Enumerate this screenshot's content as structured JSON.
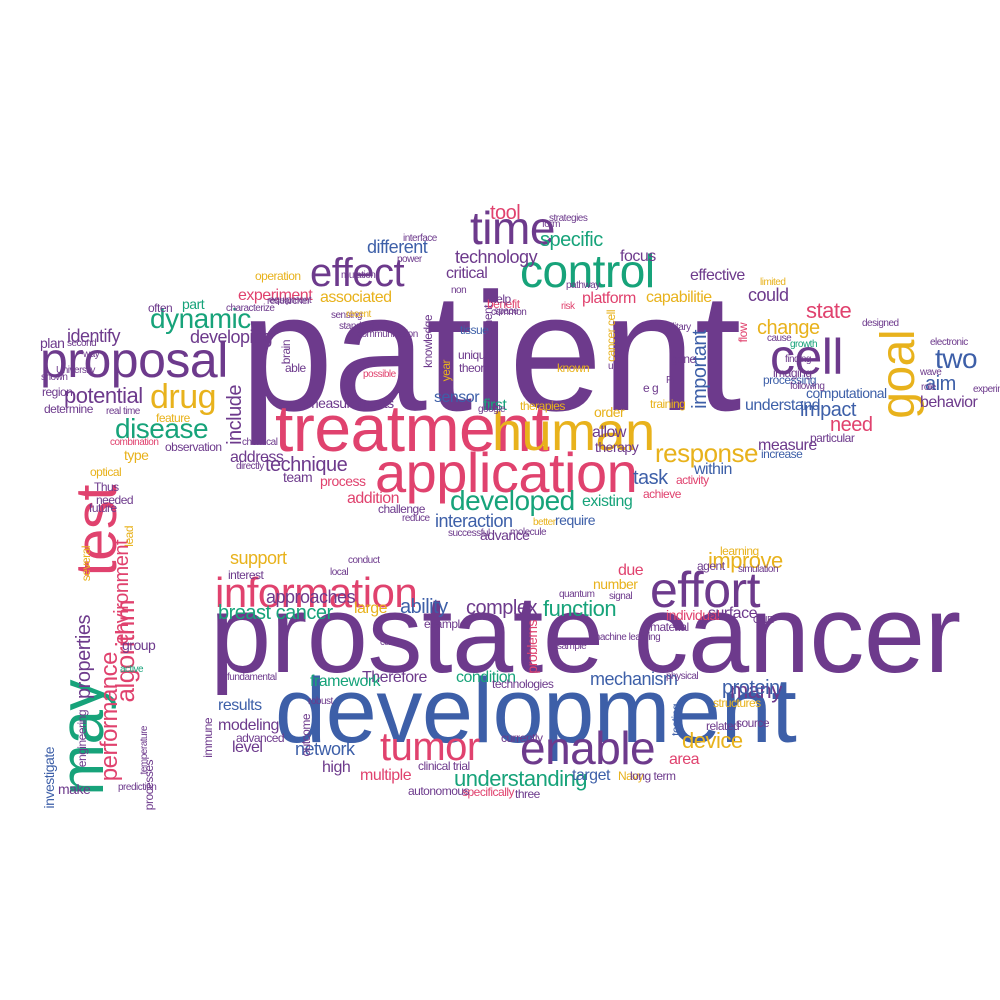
{
  "colors": {
    "purple": "#6d3a8c",
    "pink": "#e0426e",
    "green": "#17a37a",
    "yellow": "#e8b21c",
    "blue": "#3d5fa8"
  },
  "words": [
    {
      "text": "patient",
      "color": "purple",
      "size": 1
    },
    {
      "text": "prostate cancer",
      "color": "purple",
      "size": 1
    },
    {
      "text": "development",
      "color": "blue",
      "size": 1
    },
    {
      "text": "treatment",
      "color": "pink",
      "size": 2
    },
    {
      "text": "application",
      "color": "pink",
      "size": 2
    },
    {
      "text": "proposal",
      "color": "purple",
      "size": 2
    },
    {
      "text": "human",
      "color": "yellow",
      "size": 2
    },
    {
      "text": "cell",
      "color": "purple",
      "size": 2
    },
    {
      "text": "control",
      "color": "green",
      "size": 2
    },
    {
      "text": "time",
      "color": "purple",
      "size": 2
    },
    {
      "text": "effect",
      "color": "purple",
      "size": 2
    },
    {
      "text": "information",
      "color": "pink",
      "size": 2
    },
    {
      "text": "effort",
      "color": "purple",
      "size": 2
    },
    {
      "text": "enable",
      "color": "purple",
      "size": 2
    },
    {
      "text": "tumor",
      "color": "pink",
      "size": 2
    },
    {
      "text": "test",
      "color": "pink",
      "size": 2
    },
    {
      "text": "may",
      "color": "green",
      "size": 2
    },
    {
      "text": "goal",
      "color": "yellow",
      "size": 2
    },
    {
      "text": "drug",
      "color": "yellow",
      "size": 3
    },
    {
      "text": "dynamic",
      "color": "green",
      "size": 3
    },
    {
      "text": "disease",
      "color": "green",
      "size": 3
    },
    {
      "text": "developed",
      "color": "green",
      "size": 3
    },
    {
      "text": "two",
      "color": "blue",
      "size": 3
    },
    {
      "text": "algorithm",
      "color": "pink",
      "size": 3
    },
    {
      "text": "response",
      "color": "yellow",
      "size": 3
    },
    {
      "text": "specific",
      "color": "green",
      "size": 3
    },
    {
      "text": "tool",
      "color": "pink",
      "size": 3
    },
    {
      "text": "technique",
      "color": "purple",
      "size": 3
    },
    {
      "text": "interaction",
      "color": "blue",
      "size": 3
    },
    {
      "text": "understanding",
      "color": "green",
      "size": 3
    },
    {
      "text": "network",
      "color": "blue",
      "size": 3
    },
    {
      "text": "many",
      "color": "purple",
      "size": 3
    },
    {
      "text": "device",
      "color": "yellow",
      "size": 3
    },
    {
      "text": "function",
      "color": "green",
      "size": 3
    },
    {
      "text": "ability",
      "color": "blue",
      "size": 3
    },
    {
      "text": "complex",
      "color": "purple",
      "size": 3
    },
    {
      "text": "support",
      "color": "yellow",
      "size": 3
    },
    {
      "text": "improve",
      "color": "yellow",
      "size": 3
    },
    {
      "text": "breast cancer",
      "color": "green",
      "size": 3
    },
    {
      "text": "protein",
      "color": "blue",
      "size": 3
    },
    {
      "text": "performance",
      "color": "pink",
      "size": 3
    },
    {
      "text": "properties",
      "color": "purple",
      "size": 3
    },
    {
      "text": "environment",
      "color": "pink",
      "size": 3
    },
    {
      "text": "potential",
      "color": "purple",
      "size": 3
    },
    {
      "text": "include",
      "color": "purple",
      "size": 3
    },
    {
      "text": "impact",
      "color": "blue",
      "size": 3
    },
    {
      "text": "state",
      "color": "pink",
      "size": 3
    },
    {
      "text": "change",
      "color": "yellow",
      "size": 3
    },
    {
      "text": "task",
      "color": "blue",
      "size": 3
    },
    {
      "text": "need",
      "color": "pink",
      "size": 3
    },
    {
      "text": "aim",
      "color": "blue",
      "size": 3
    },
    {
      "text": "important",
      "color": "blue",
      "size": 3
    },
    {
      "text": "approaches",
      "color": "purple",
      "size": 3
    },
    {
      "text": "mechanism",
      "color": "blue",
      "size": 3
    },
    {
      "text": "results",
      "color": "blue",
      "size": 3
    },
    {
      "text": "experiment",
      "color": "pink",
      "size": 4
    },
    {
      "text": "associated",
      "color": "yellow",
      "size": 4
    },
    {
      "text": "identify",
      "color": "purple",
      "size": 4
    },
    {
      "text": "developing",
      "color": "purple",
      "size": 4
    },
    {
      "text": "technology",
      "color": "purple",
      "size": 4
    },
    {
      "text": "different",
      "color": "blue",
      "size": 4
    },
    {
      "text": "critical",
      "color": "purple",
      "size": 4
    },
    {
      "text": "platform",
      "color": "pink",
      "size": 4
    },
    {
      "text": "capabilitie",
      "color": "yellow",
      "size": 4
    },
    {
      "text": "effective",
      "color": "purple",
      "size": 4
    },
    {
      "text": "focus",
      "color": "purple",
      "size": 4
    },
    {
      "text": "could",
      "color": "purple",
      "size": 4
    },
    {
      "text": "computational",
      "color": "blue",
      "size": 4
    },
    {
      "text": "behavior",
      "color": "purple",
      "size": 4
    },
    {
      "text": "understand",
      "color": "blue",
      "size": 4
    },
    {
      "text": "measure",
      "color": "purple",
      "size": 4
    },
    {
      "text": "address",
      "color": "purple",
      "size": 4
    },
    {
      "text": "process",
      "color": "pink",
      "size": 4
    },
    {
      "text": "team",
      "color": "purple",
      "size": 4
    },
    {
      "text": "addition",
      "color": "pink",
      "size": 4
    },
    {
      "text": "sensor",
      "color": "blue",
      "size": 4
    },
    {
      "text": "first",
      "color": "green",
      "size": 4
    },
    {
      "text": "therapy",
      "color": "purple",
      "size": 4
    },
    {
      "text": "allow",
      "color": "purple",
      "size": 4
    },
    {
      "text": "order",
      "color": "yellow",
      "size": 4
    },
    {
      "text": "existing",
      "color": "green",
      "size": 4
    },
    {
      "text": "within",
      "color": "blue",
      "size": 4
    },
    {
      "text": "measurements",
      "color": "purple",
      "size": 4
    },
    {
      "text": "advance",
      "color": "purple",
      "size": 4
    },
    {
      "text": "require",
      "color": "blue",
      "size": 4
    },
    {
      "text": "large",
      "color": "yellow",
      "size": 4
    },
    {
      "text": "level",
      "color": "purple",
      "size": 4
    },
    {
      "text": "modeling",
      "color": "purple",
      "size": 4
    },
    {
      "text": "high",
      "color": "purple",
      "size": 4
    },
    {
      "text": "multiple",
      "color": "pink",
      "size": 4
    },
    {
      "text": "condition",
      "color": "green",
      "size": 4
    },
    {
      "text": "Therefore",
      "color": "purple",
      "size": 4
    },
    {
      "text": "framework",
      "color": "green",
      "size": 4
    },
    {
      "text": "area",
      "color": "pink",
      "size": 4
    },
    {
      "text": "due",
      "color": "pink",
      "size": 4
    },
    {
      "text": "number",
      "color": "yellow",
      "size": 4
    },
    {
      "text": "individual",
      "color": "pink",
      "size": 4
    },
    {
      "text": "surface",
      "color": "purple",
      "size": 4
    },
    {
      "text": "target",
      "color": "blue",
      "size": 4
    },
    {
      "text": "group",
      "color": "purple",
      "size": 4
    },
    {
      "text": "investigate",
      "color": "blue",
      "size": 4
    },
    {
      "text": "make",
      "color": "purple",
      "size": 4
    },
    {
      "text": "problems",
      "color": "pink",
      "size": 4
    },
    {
      "text": "type",
      "color": "yellow",
      "size": 4
    },
    {
      "text": "plan",
      "color": "purple",
      "size": 4
    },
    {
      "text": "part",
      "color": "green",
      "size": 4
    },
    {
      "text": "often",
      "color": "purple",
      "size": 5
    },
    {
      "text": "determine",
      "color": "purple",
      "size": 5
    },
    {
      "text": "region",
      "color": "purple",
      "size": 5
    },
    {
      "text": "feature",
      "color": "yellow",
      "size": 5
    },
    {
      "text": "observation",
      "color": "purple",
      "size": 5
    },
    {
      "text": "operation",
      "color": "yellow",
      "size": 5
    },
    {
      "text": "tissue",
      "color": "blue",
      "size": 5
    },
    {
      "text": "unique",
      "color": "purple",
      "size": 5
    },
    {
      "text": "theory",
      "color": "purple",
      "size": 5
    },
    {
      "text": "component",
      "color": "purple",
      "size": 5
    },
    {
      "text": "knowledge",
      "color": "purple",
      "size": 5
    },
    {
      "text": "benefit",
      "color": "pink",
      "size": 5
    },
    {
      "text": "help",
      "color": "purple",
      "size": 5
    },
    {
      "text": "known",
      "color": "yellow",
      "size": 5
    },
    {
      "text": "cancer cell",
      "color": "yellow",
      "size": 5
    },
    {
      "text": "gene",
      "color": "purple",
      "size": 5
    },
    {
      "text": "processing",
      "color": "blue",
      "size": 5
    },
    {
      "text": "imaging",
      "color": "purple",
      "size": 5
    },
    {
      "text": "flow",
      "color": "pink",
      "size": 5
    },
    {
      "text": "training",
      "color": "yellow",
      "size": 5
    },
    {
      "text": "e g",
      "color": "purple",
      "size": 5
    },
    {
      "text": "year",
      "color": "yellow",
      "size": 5
    },
    {
      "text": "brain",
      "color": "purple",
      "size": 5
    },
    {
      "text": "able",
      "color": "purple",
      "size": 5
    },
    {
      "text": "therapies",
      "color": "yellow",
      "size": 5
    },
    {
      "text": "particular",
      "color": "purple",
      "size": 5
    },
    {
      "text": "increase",
      "color": "blue",
      "size": 5
    },
    {
      "text": "achieve",
      "color": "pink",
      "size": 5
    },
    {
      "text": "activity",
      "color": "pink",
      "size": 5
    },
    {
      "text": "challenge",
      "color": "purple",
      "size": 5
    },
    {
      "text": "Thus",
      "color": "purple",
      "size": 5
    },
    {
      "text": "future",
      "color": "purple",
      "size": 5
    },
    {
      "text": "needed",
      "color": "purple",
      "size": 5
    },
    {
      "text": "optical",
      "color": "yellow",
      "size": 5
    },
    {
      "text": "lead",
      "color": "yellow",
      "size": 5
    },
    {
      "text": "interest",
      "color": "purple",
      "size": 5
    },
    {
      "text": "advanced",
      "color": "purple",
      "size": 5
    },
    {
      "text": "outcome",
      "color": "purple",
      "size": 5
    },
    {
      "text": "currently",
      "color": "purple",
      "size": 5
    },
    {
      "text": "specifically",
      "color": "pink",
      "size": 5
    },
    {
      "text": "clinical trial",
      "color": "purple",
      "size": 5
    },
    {
      "text": "technologies",
      "color": "purple",
      "size": 5
    },
    {
      "text": "related",
      "color": "purple",
      "size": 5
    },
    {
      "text": "source",
      "color": "purple",
      "size": 5
    },
    {
      "text": "structures",
      "color": "yellow",
      "size": 5
    },
    {
      "text": "testing",
      "color": "blue",
      "size": 5
    },
    {
      "text": "agent",
      "color": "purple",
      "size": 5
    },
    {
      "text": "learning",
      "color": "yellow",
      "size": 5
    },
    {
      "text": "material",
      "color": "purple",
      "size": 5
    },
    {
      "text": "processes",
      "color": "purple",
      "size": 5
    },
    {
      "text": "engineering",
      "color": "purple",
      "size": 5
    },
    {
      "text": "immune",
      "color": "purple",
      "size": 5
    },
    {
      "text": "example",
      "color": "purple",
      "size": 5
    },
    {
      "text": "Navy",
      "color": "yellow",
      "size": 5
    },
    {
      "text": "long term",
      "color": "purple",
      "size": 5
    },
    {
      "text": "three",
      "color": "purple",
      "size": 5
    },
    {
      "text": "autonomous",
      "color": "purple",
      "size": 5
    },
    {
      "text": "several",
      "color": "yellow",
      "size": 5
    },
    {
      "text": "prediction",
      "color": "purple",
      "size": 6
    },
    {
      "text": "temperature",
      "color": "purple",
      "size": 6
    },
    {
      "text": "active",
      "color": "green",
      "size": 6
    },
    {
      "text": "real time",
      "color": "purple",
      "size": 6
    },
    {
      "text": "combination",
      "color": "pink",
      "size": 6
    },
    {
      "text": "chemical",
      "color": "purple",
      "size": 6
    },
    {
      "text": "directly",
      "color": "purple",
      "size": 6
    },
    {
      "text": "reduce",
      "color": "purple",
      "size": 6
    },
    {
      "text": "successful",
      "color": "purple",
      "size": 6
    },
    {
      "text": "molecule",
      "color": "purple",
      "size": 6
    },
    {
      "text": "better",
      "color": "yellow",
      "size": 6
    },
    {
      "text": "sample",
      "color": "purple",
      "size": 6
    },
    {
      "text": "case",
      "color": "purple",
      "size": 6
    },
    {
      "text": "quantum",
      "color": "purple",
      "size": 6
    },
    {
      "text": "machine learning",
      "color": "purple",
      "size": 6
    },
    {
      "text": "signal",
      "color": "purple",
      "size": 6
    },
    {
      "text": "physical",
      "color": "purple",
      "size": 6
    },
    {
      "text": "simulation",
      "color": "purple",
      "size": 6
    },
    {
      "text": "ONR",
      "color": "purple",
      "size": 6
    },
    {
      "text": "cause",
      "color": "purple",
      "size": 6
    },
    {
      "text": "following",
      "color": "purple",
      "size": 6
    },
    {
      "text": "finding",
      "color": "purple",
      "size": 6
    },
    {
      "text": "growth",
      "color": "green",
      "size": 6
    },
    {
      "text": "limited",
      "color": "yellow",
      "size": 6
    },
    {
      "text": "designed",
      "color": "purple",
      "size": 6
    },
    {
      "text": "electronic",
      "color": "purple",
      "size": 6
    },
    {
      "text": "wave",
      "color": "purple",
      "size": 6
    },
    {
      "text": "experimental",
      "color": "purple",
      "size": 6
    },
    {
      "text": "role",
      "color": "purple",
      "size": 6
    },
    {
      "text": "military",
      "color": "purple",
      "size": 6
    },
    {
      "text": "space",
      "color": "purple",
      "size": 6
    },
    {
      "text": "risk",
      "color": "pink",
      "size": 6
    },
    {
      "text": "pathway",
      "color": "purple",
      "size": 6
    },
    {
      "text": "power",
      "color": "purple",
      "size": 6
    },
    {
      "text": "mutation",
      "color": "purple",
      "size": 6
    },
    {
      "text": "non",
      "color": "purple",
      "size": 6
    },
    {
      "text": "strategies",
      "color": "purple",
      "size": 6
    },
    {
      "text": "form",
      "color": "purple",
      "size": 6
    },
    {
      "text": "interface",
      "color": "purple",
      "size": 6
    },
    {
      "text": "sensing",
      "color": "purple",
      "size": 6
    },
    {
      "text": "standard",
      "color": "purple",
      "size": 6
    },
    {
      "text": "recent",
      "color": "yellow",
      "size": 6
    },
    {
      "text": "possible",
      "color": "pink",
      "size": 6
    },
    {
      "text": "communication",
      "color": "purple",
      "size": 6
    },
    {
      "text": "researcher",
      "color": "purple",
      "size": 6
    },
    {
      "text": "equipment",
      "color": "purple",
      "size": 6
    },
    {
      "text": "characterize",
      "color": "purple",
      "size": 6
    },
    {
      "text": "second",
      "color": "purple",
      "size": 6
    },
    {
      "text": "way",
      "color": "purple",
      "size": 6
    },
    {
      "text": "shown",
      "color": "purple",
      "size": 6
    },
    {
      "text": "University",
      "color": "purple",
      "size": 6
    },
    {
      "text": "fundamental",
      "color": "purple",
      "size": 6
    },
    {
      "text": "robust",
      "color": "purple",
      "size": 6
    },
    {
      "text": "conduct",
      "color": "purple",
      "size": 6
    },
    {
      "text": "local",
      "color": "purple",
      "size": 6
    },
    {
      "text": "common",
      "color": "purple",
      "size": 6
    },
    {
      "text": "google",
      "color": "purple",
      "size": 6
    },
    {
      "text": "u",
      "color": "purple",
      "size": 6
    },
    {
      "text": "Pi",
      "color": "purple",
      "size": 6
    }
  ]
}
